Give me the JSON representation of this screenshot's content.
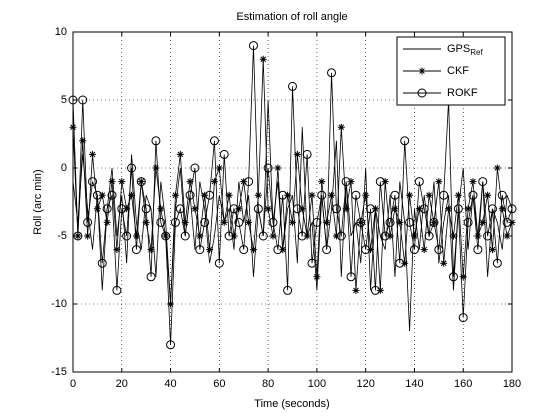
{
  "chart_data": {
    "type": "line",
    "title": "Estimation of roll angle",
    "xlabel": "Time (seconds)",
    "ylabel": "Roll (arc min)",
    "x": [
      0,
      2,
      4,
      6,
      8,
      10,
      12,
      14,
      16,
      18,
      20,
      22,
      24,
      26,
      28,
      30,
      32,
      34,
      36,
      38,
      40,
      42,
      44,
      46,
      48,
      50,
      52,
      54,
      56,
      58,
      60,
      62,
      64,
      66,
      68,
      70,
      72,
      74,
      76,
      78,
      80,
      82,
      84,
      86,
      88,
      90,
      92,
      94,
      96,
      98,
      100,
      102,
      104,
      106,
      108,
      110,
      112,
      114,
      116,
      118,
      120,
      122,
      124,
      126,
      128,
      130,
      132,
      134,
      136,
      138,
      140,
      142,
      144,
      146,
      148,
      150,
      152,
      154,
      156,
      158,
      160,
      162,
      164,
      166,
      168,
      170,
      172,
      174,
      176,
      178,
      180
    ],
    "series": [
      {
        "name": "GPS",
        "name_sub": "Ref",
        "color": "#000000",
        "marker": "none",
        "values": [
          -1,
          -4,
          1,
          -3,
          -6,
          -2,
          -9,
          -3,
          0,
          -5,
          -2,
          -7,
          1,
          -4,
          -6,
          -2,
          -3,
          -8,
          -1,
          -4,
          -10,
          -3,
          0,
          -5,
          -2,
          -6,
          -1,
          -3,
          -7,
          -5,
          -2,
          -4,
          -3,
          -6,
          -1,
          -4,
          -2,
          -8,
          -3,
          -5,
          5,
          -4,
          -1,
          -6,
          -3,
          -2,
          -7,
          3,
          -5,
          -4,
          -9,
          -2,
          -6,
          -3,
          2,
          -8,
          -1,
          -5,
          -4,
          -7,
          0,
          -9,
          -3,
          -5,
          -6,
          -2,
          -8,
          -1,
          -4,
          -12,
          -3,
          -6,
          -2,
          -5,
          -1,
          -7,
          -4,
          -2,
          -9,
          -3,
          0,
          -6,
          -2,
          -5,
          -1,
          -8,
          -3,
          -4,
          -6,
          -2,
          -3
        ]
      },
      {
        "name": "CKF",
        "color": "#000000",
        "marker": "asterisk",
        "values": [
          3,
          -5,
          2,
          -5,
          1,
          -3,
          -2,
          -4,
          -1,
          -6,
          -1,
          -3,
          -2,
          -5,
          -1,
          -4,
          -6,
          0,
          -3,
          -5,
          -10,
          -2,
          1,
          -4,
          -1,
          -3,
          -5,
          -2,
          -6,
          -1,
          0,
          -4,
          -2,
          -5,
          -3,
          -1,
          -4,
          -6,
          -2,
          8,
          -3,
          -5,
          0,
          -6,
          -2,
          -4,
          1,
          -3,
          -5,
          -2,
          -8,
          -1,
          -4,
          -2,
          -5,
          3,
          -3,
          -1,
          -9,
          -4,
          -2,
          -6,
          -3,
          -9,
          -1,
          -5,
          -3,
          -4,
          -7,
          -2,
          -5,
          -3,
          -6,
          -2,
          -4,
          -1,
          -7,
          -3,
          -5,
          -2,
          -8,
          -3,
          -1,
          -5,
          -4,
          -2,
          -6,
          0,
          -3,
          -5,
          -4
        ]
      },
      {
        "name": "ROKF",
        "color": "#000000",
        "marker": "circle",
        "values": [
          5,
          -5,
          5,
          -4,
          -1,
          -2,
          -7,
          -3,
          -2,
          -9,
          -3,
          -5,
          0,
          -6,
          -1,
          -3,
          -8,
          2,
          -4,
          -5,
          -13,
          -4,
          -3,
          -5,
          -2,
          0,
          -6,
          -4,
          -2,
          2,
          -7,
          1,
          -5,
          -3,
          -4,
          -6,
          -1,
          9,
          -3,
          -5,
          0,
          -4,
          -6,
          -2,
          -9,
          6,
          -3,
          -5,
          1,
          -7,
          -4,
          -2,
          -6,
          7,
          -3,
          -5,
          -1,
          -8,
          -2,
          -4,
          -6,
          -3,
          -9,
          -1,
          -5,
          -4,
          -2,
          -7,
          2,
          -4,
          -6,
          -1,
          -3,
          -5,
          -4,
          -6,
          -2,
          5,
          -8,
          -3,
          -11,
          -4,
          -2,
          -6,
          -1,
          -5,
          -3,
          -7,
          -2,
          -4,
          -3
        ]
      }
    ],
    "xlim": [
      0,
      180
    ],
    "xticks": [
      0,
      20,
      40,
      60,
      80,
      100,
      120,
      140,
      160,
      180
    ],
    "ylim": [
      -15,
      10
    ],
    "yticks": [
      -15,
      -10,
      -5,
      0,
      5,
      10
    ],
    "grid": true,
    "legend": "northeast"
  }
}
